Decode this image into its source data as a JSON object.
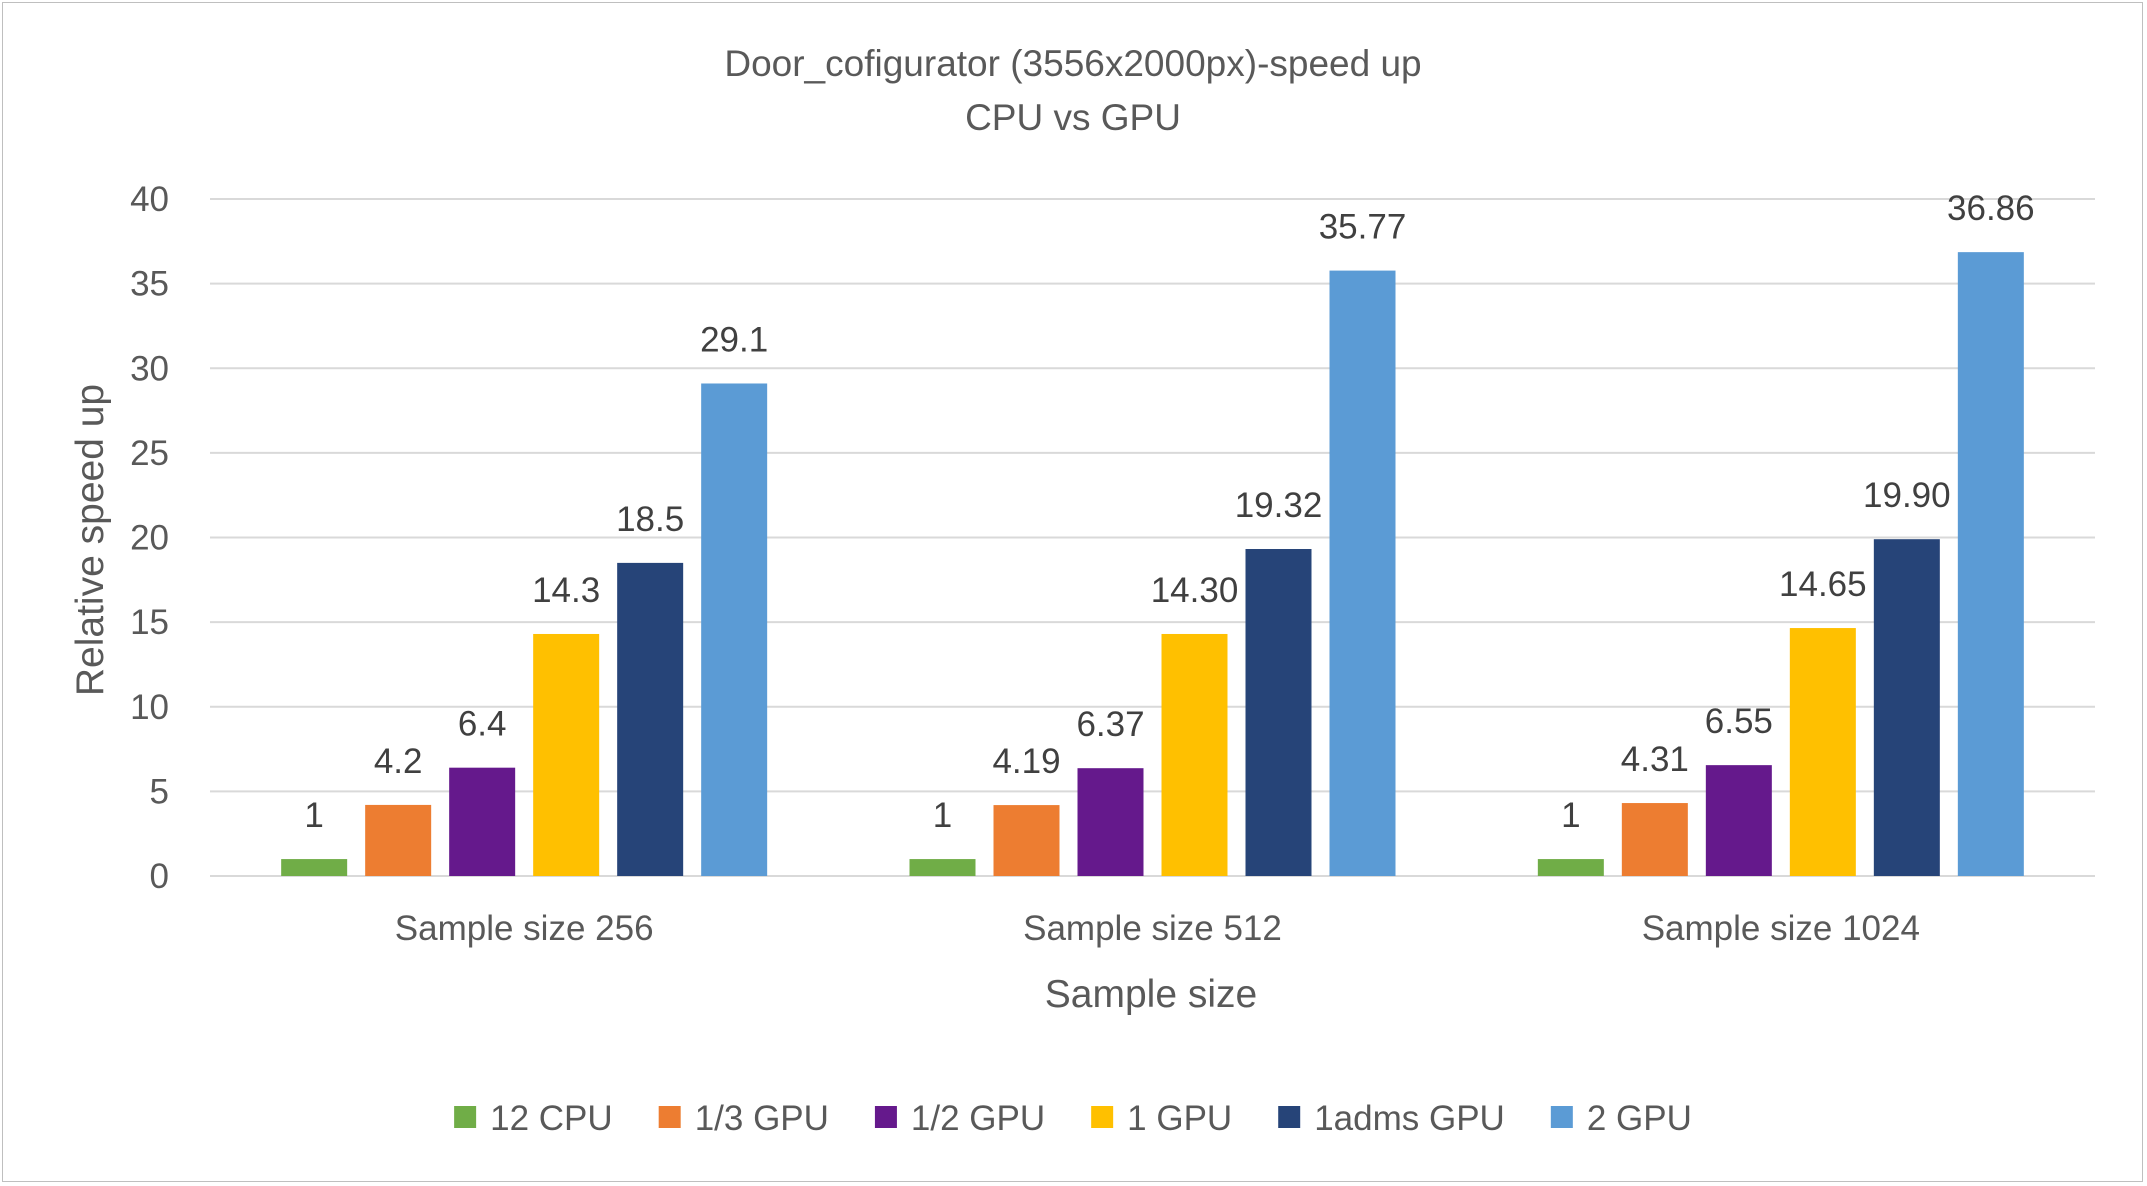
{
  "chart_data": {
    "type": "bar",
    "title": "Door_cofigurator (3556x2000px)-speed up",
    "subtitle": "CPU vs GPU",
    "xlabel": "Sample size",
    "ylabel": "Relative speed up",
    "ylim": [
      0,
      40
    ],
    "ytick_step": 5,
    "yticks": [
      "0",
      "5",
      "10",
      "15",
      "20",
      "25",
      "30",
      "35",
      "40"
    ],
    "grid": true,
    "legend_position": "bottom",
    "categories": [
      "Sample size 256",
      "Sample size 512",
      "Sample size 1024"
    ],
    "series": [
      {
        "name": "12 CPU",
        "color": "#70ad47",
        "values": [
          1,
          1,
          1
        ],
        "labels": [
          "1",
          "1",
          "1"
        ]
      },
      {
        "name": "1/3 GPU",
        "color": "#ed7d31",
        "values": [
          4.2,
          4.19,
          4.31
        ],
        "labels": [
          "4.2",
          "4.19",
          "4.31"
        ]
      },
      {
        "name": "1/2 GPU",
        "color": "#65198c",
        "values": [
          6.4,
          6.37,
          6.55
        ],
        "labels": [
          "6.4",
          "6.37",
          "6.55"
        ]
      },
      {
        "name": "1 GPU",
        "color": "#ffc000",
        "values": [
          14.3,
          14.3,
          14.65
        ],
        "labels": [
          "14.3",
          "14.30",
          "14.65"
        ]
      },
      {
        "name": "1adms GPU",
        "color": "#264478",
        "values": [
          18.5,
          19.32,
          19.9
        ],
        "labels": [
          "18.5",
          "19.32",
          "19.90"
        ]
      },
      {
        "name": "2 GPU",
        "color": "#5b9bd5",
        "values": [
          29.1,
          35.77,
          36.86
        ],
        "labels": [
          "29.1",
          "35.77",
          "36.86"
        ]
      }
    ]
  }
}
